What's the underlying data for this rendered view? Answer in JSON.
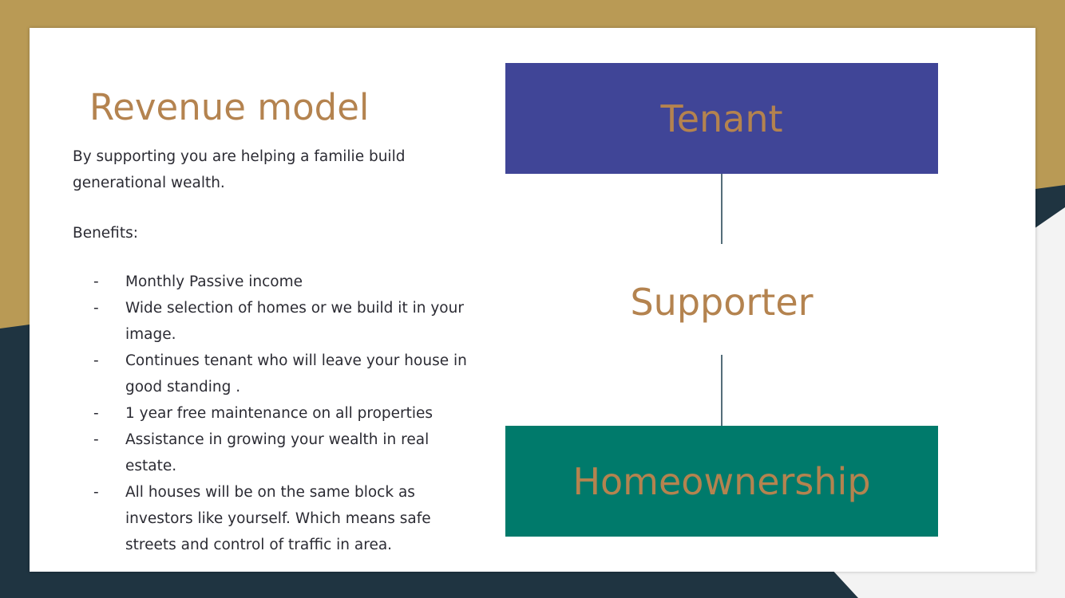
{
  "colors": {
    "gold": "#b99a55",
    "navy": "#1f3441",
    "title_text": "#b4834f",
    "tenant_box": "#404597",
    "homeownership_box": "#007a6b"
  },
  "slide": {
    "title": "Revenue model",
    "intro": "By supporting you are helping a familie build generational wealth.",
    "benefits_label": "Benefits:",
    "benefits": [
      "Monthly Passive income",
      "Wide selection of homes or we build it in your image.",
      "Continues tenant who will leave your house in good standing .",
      "1 year free maintenance on all properties",
      "Assistance in growing  your wealth  in real estate.",
      "All houses will be on the same block as investors like yourself. Which means safe streets and control of traffic in area."
    ],
    "bullet_marker": "-",
    "diagram": {
      "top": "Tenant",
      "middle": "Supporter",
      "bottom": "Homeownership"
    }
  }
}
